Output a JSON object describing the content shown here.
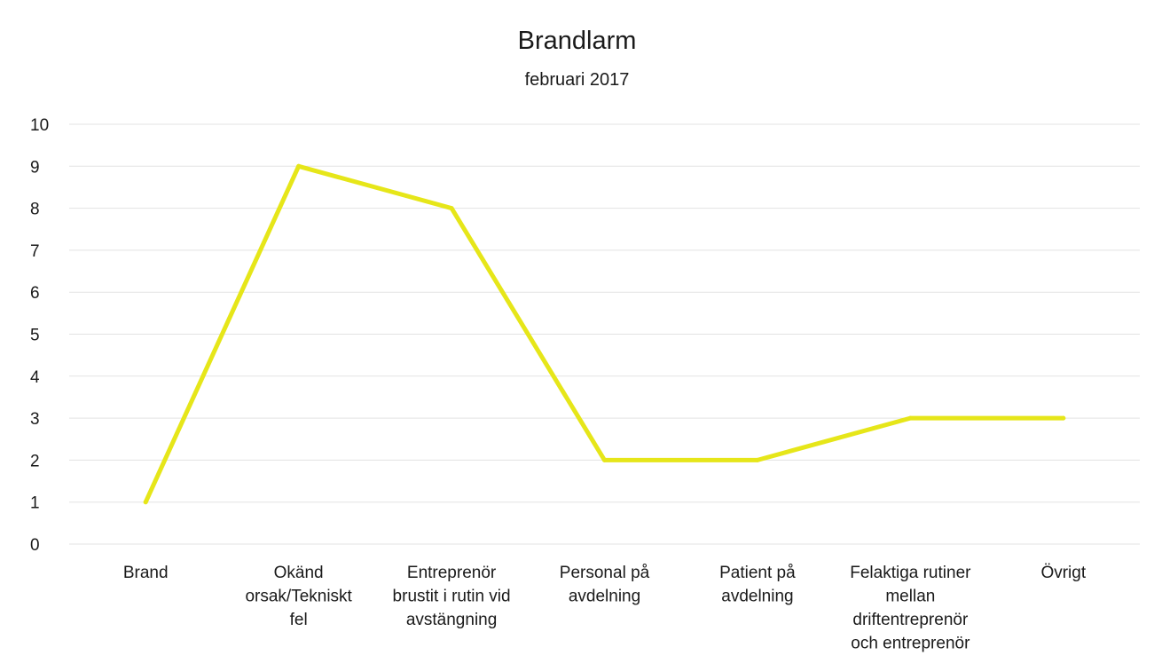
{
  "chart_data": {
    "type": "line",
    "title": "Brandlarm",
    "subtitle": "februari 2017",
    "categories": [
      [
        "Brand"
      ],
      [
        "Okänd",
        "orsak/Tekniskt",
        "fel"
      ],
      [
        "Entreprenör",
        "brustit i rutin vid",
        "avstängning"
      ],
      [
        "Personal på",
        "avdelning"
      ],
      [
        "Patient på",
        "avdelning"
      ],
      [
        "Felaktiga rutiner",
        "mellan",
        "driftentreprenör",
        "och entreprenör"
      ],
      [
        "Övrigt"
      ]
    ],
    "series": [
      {
        "values": [
          1,
          9,
          8,
          2,
          2,
          3,
          3
        ],
        "color": "#e6e619"
      }
    ],
    "ylim": [
      0,
      10
    ],
    "yticks": [
      "0",
      "1",
      "2",
      "3",
      "4",
      "5",
      "6",
      "7",
      "8",
      "9",
      "10"
    ],
    "grid": true,
    "xlabel": "",
    "ylabel": ""
  }
}
